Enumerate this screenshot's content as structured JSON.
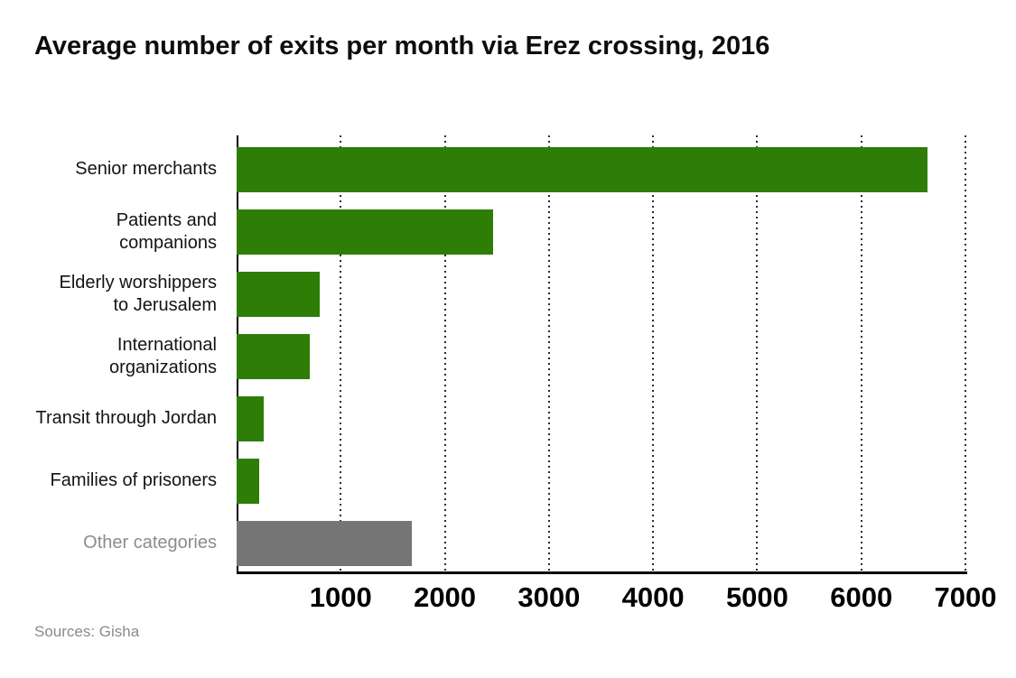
{
  "title": "Average number of exits per month via Erez crossing, 2016",
  "source": "Sources: Gisha",
  "colors": {
    "bar_green": "#2e7d06",
    "bar_gray": "#757575",
    "muted_text": "#8c8c8c",
    "axis": "#000000",
    "background": "#ffffff"
  },
  "chart_data": {
    "type": "bar",
    "orientation": "horizontal",
    "title": "Average number of exits per month via Erez crossing, 2016",
    "categories": [
      "Senior merchants",
      "Patients and companions",
      "Elderly worshippers to Jerusalem",
      "International organizations",
      "Transit through Jordan",
      "Families of prisoners",
      "Other categories"
    ],
    "category_display_labels": [
      "Senior merchants",
      "Patients and\ncompanions",
      "Elderly worshippers\nto Jerusalem",
      "International\norganizations",
      "Transit through Jordan",
      "Families of prisoners",
      "Other categories"
    ],
    "values": [
      6640,
      2460,
      800,
      700,
      260,
      220,
      1680
    ],
    "bar_colors": [
      "#2e7d06",
      "#2e7d06",
      "#2e7d06",
      "#2e7d06",
      "#2e7d06",
      "#2e7d06",
      "#757575"
    ],
    "other_category_index": 6,
    "xlabel": "",
    "ylabel": "",
    "xlim": [
      0,
      7000
    ],
    "xticks": [
      1000,
      2000,
      3000,
      4000,
      5000,
      6000,
      7000
    ],
    "xtick_labels": [
      "1000",
      "2000",
      "3000",
      "4000",
      "5000",
      "6000",
      "7000"
    ],
    "grid": "vertical-dotted",
    "legend": "none",
    "source": "Sources: Gisha"
  }
}
